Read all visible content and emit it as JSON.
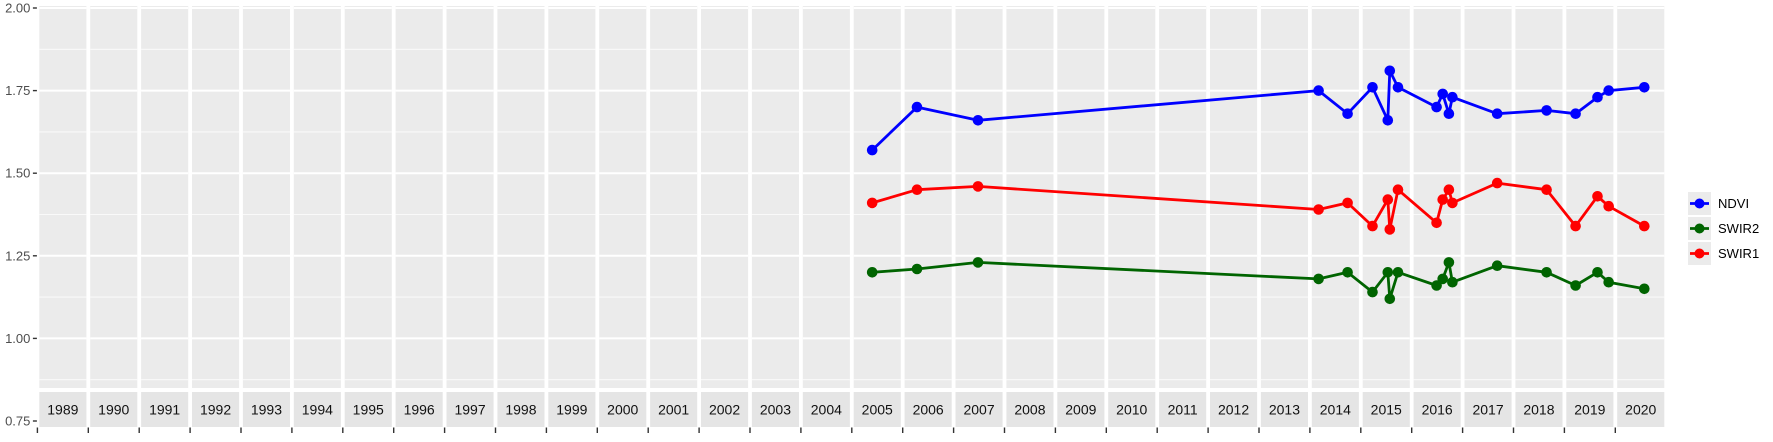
{
  "chart_data": {
    "type": "line",
    "title": "",
    "xlabel": "",
    "ylabel": "",
    "x_range": [
      1989,
      2021
    ],
    "y_range": [
      0.75,
      2.0
    ],
    "grid": true,
    "legend_position": "right",
    "facet_years": [
      "1989",
      "1990",
      "1991",
      "1992",
      "1993",
      "1994",
      "1995",
      "1996",
      "1997",
      "1998",
      "1999",
      "2000",
      "2001",
      "2002",
      "2003",
      "2004",
      "2005",
      "2006",
      "2007",
      "2008",
      "2009",
      "2010",
      "2011",
      "2012",
      "2013",
      "2014",
      "2015",
      "2016",
      "2017",
      "2018",
      "2019",
      "2020"
    ],
    "y_ticks": [
      {
        "label": "2.00",
        "value": 2.0
      },
      {
        "label": "1.75",
        "value": 1.75
      },
      {
        "label": "1.50",
        "value": 1.5
      },
      {
        "label": "1.25",
        "value": 1.25
      },
      {
        "label": "1.00",
        "value": 1.0
      },
      {
        "label": "0.75",
        "value": 0.75
      }
    ],
    "y_minor_ticks": [
      1.875,
      1.625,
      1.375,
      1.125,
      0.875
    ],
    "x": [
      2005.4,
      2006.28,
      2007.48,
      2014.17,
      2014.74,
      2015.23,
      2015.53,
      2015.57,
      2015.73,
      2016.49,
      2016.61,
      2016.73,
      2016.8,
      2017.68,
      2018.65,
      2019.22,
      2019.65,
      2019.87,
      2020.57
    ],
    "series": [
      {
        "name": "NDVI",
        "color": "#0000ff",
        "values": [
          1.57,
          1.7,
          1.66,
          1.75,
          1.68,
          1.76,
          1.66,
          1.81,
          1.76,
          1.7,
          1.74,
          1.68,
          1.73,
          1.68,
          1.69,
          1.68,
          1.73,
          1.75,
          1.76
        ]
      },
      {
        "name": "SWIR2",
        "color": "#006400",
        "values": [
          1.2,
          1.21,
          1.23,
          1.18,
          1.2,
          1.14,
          1.2,
          1.12,
          1.2,
          1.16,
          1.18,
          1.23,
          1.17,
          1.22,
          1.2,
          1.16,
          1.2,
          1.17,
          1.15
        ]
      },
      {
        "name": "SWIR1",
        "color": "#ff0000",
        "values": [
          1.41,
          1.45,
          1.46,
          1.39,
          1.41,
          1.34,
          1.42,
          1.33,
          1.45,
          1.35,
          1.42,
          1.45,
          1.41,
          1.47,
          1.45,
          1.34,
          1.43,
          1.4,
          1.34
        ]
      }
    ]
  },
  "colors": {
    "figure_bg": "#ffffff",
    "panel_bg": "#ebebeb",
    "strip_bg": "#e5e5e5",
    "grid_major": "#ffffff",
    "grid_minor": "#f7f7f7",
    "axis_text": "#4d4d4d",
    "strip_text": "#111111",
    "tick_mark": "#333333"
  }
}
